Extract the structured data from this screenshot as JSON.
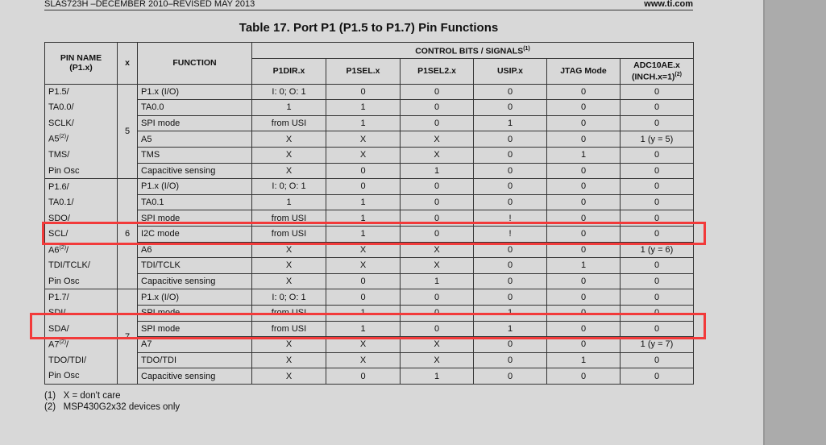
{
  "page_header": {
    "doc_id": "SLAS723H –DECEMBER 2010–REVISED MAY 2013",
    "website": "www.ti.com"
  },
  "table": {
    "title": "Table 17. Port P1 (P1.5 to P1.7) Pin Functions",
    "headers": {
      "pin_name": "PIN NAME",
      "pin_name_sub": "(P1.x)",
      "x": "x",
      "function": "FUNCTION",
      "control_bits": "CONTROL BITS / SIGNALS",
      "control_bits_note": "(1)",
      "columns": [
        "P1DIR.x",
        "P1SEL.x",
        "P1SEL2.x",
        "USIP.x",
        "JTAG Mode",
        "ADC10AE.x"
      ],
      "adc_sub": "(INCH.x=1)",
      "adc_note": "(2)"
    },
    "groups": [
      {
        "x": "5",
        "rows": [
          {
            "pin": "P1.5/",
            "function": "P1.x (I/O)",
            "values": [
              "I: 0; O: 1",
              "0",
              "0",
              "0",
              "0",
              "0"
            ]
          },
          {
            "pin": "TA0.0/",
            "function": "TA0.0",
            "values": [
              "1",
              "1",
              "0",
              "0",
              "0",
              "0"
            ]
          },
          {
            "pin": "SCLK/",
            "function": "SPI mode",
            "values": [
              "from USI",
              "1",
              "0",
              "1",
              "0",
              "0"
            ]
          },
          {
            "pin": "A5",
            "pin_note": "(2)",
            "pin_suffix": "/",
            "function": "A5",
            "values": [
              "X",
              "X",
              "X",
              "0",
              "0",
              "1 (y = 5)"
            ]
          },
          {
            "pin": "TMS/",
            "function": "TMS",
            "values": [
              "X",
              "X",
              "X",
              "0",
              "1",
              "0"
            ]
          },
          {
            "pin": "Pin Osc",
            "function": "Capacitive sensing",
            "values": [
              "X",
              "0",
              "1",
              "0",
              "0",
              "0"
            ]
          }
        ]
      },
      {
        "x": "6",
        "rows": [
          {
            "pin": "P1.6/",
            "function": "P1.x (I/O)",
            "values": [
              "I: 0; O: 1",
              "0",
              "0",
              "0",
              "0",
              "0"
            ]
          },
          {
            "pin": "TA0.1/",
            "function": "TA0.1",
            "values": [
              "1",
              "1",
              "0",
              "0",
              "0",
              "0"
            ]
          },
          {
            "pin": "SDO/",
            "function": "SPI mode",
            "values": [
              "from USI",
              "1",
              "0",
              "!",
              "0",
              "0"
            ]
          },
          {
            "pin": "SCL/",
            "function": "I2C mode",
            "values": [
              "from USI",
              "1",
              "0",
              "!",
              "0",
              "0"
            ]
          },
          {
            "pin": "A6",
            "pin_note": "(2)",
            "pin_suffix": "/",
            "function": "A6",
            "values": [
              "X",
              "X",
              "X",
              "0",
              "0",
              "1 (y = 6)"
            ]
          },
          {
            "pin": "TDI/TCLK/",
            "function": "TDI/TCLK",
            "values": [
              "X",
              "X",
              "X",
              "0",
              "1",
              "0"
            ]
          },
          {
            "pin": "Pin Osc",
            "function": "Capacitive sensing",
            "values": [
              "X",
              "0",
              "1",
              "0",
              "0",
              "0"
            ]
          }
        ]
      },
      {
        "x": "7",
        "rows": [
          {
            "pin": "P1.7/",
            "function": "P1.x (I/O)",
            "values": [
              "I: 0; O: 1",
              "0",
              "0",
              "0",
              "0",
              "0"
            ]
          },
          {
            "pin": "SDI/",
            "function": "SPI mode",
            "values": [
              "from USI",
              "1",
              "0",
              "1",
              "0",
              "0"
            ]
          },
          {
            "pin": "SDA/",
            "function": "SPI mode",
            "values": [
              "from USI",
              "1",
              "0",
              "1",
              "0",
              "0"
            ]
          },
          {
            "pin": "A7",
            "pin_note": "(2)",
            "pin_suffix": "/",
            "function": "A7",
            "values": [
              "X",
              "X",
              "X",
              "0",
              "0",
              "1 (y = 7)"
            ]
          },
          {
            "pin": "TDO/TDI/",
            "function": "TDO/TDI",
            "values": [
              "X",
              "X",
              "X",
              "0",
              "1",
              "0"
            ]
          },
          {
            "pin": "Pin Osc",
            "function": "Capacitive sensing",
            "values": [
              "X",
              "0",
              "1",
              "0",
              "0",
              "0"
            ]
          }
        ]
      }
    ]
  },
  "footnotes": [
    {
      "num": "(1)",
      "text": "X = don't care"
    },
    {
      "num": "(2)",
      "text": "MSP430G2x32 devices only"
    }
  ],
  "highlight_color": "#f23a3a"
}
